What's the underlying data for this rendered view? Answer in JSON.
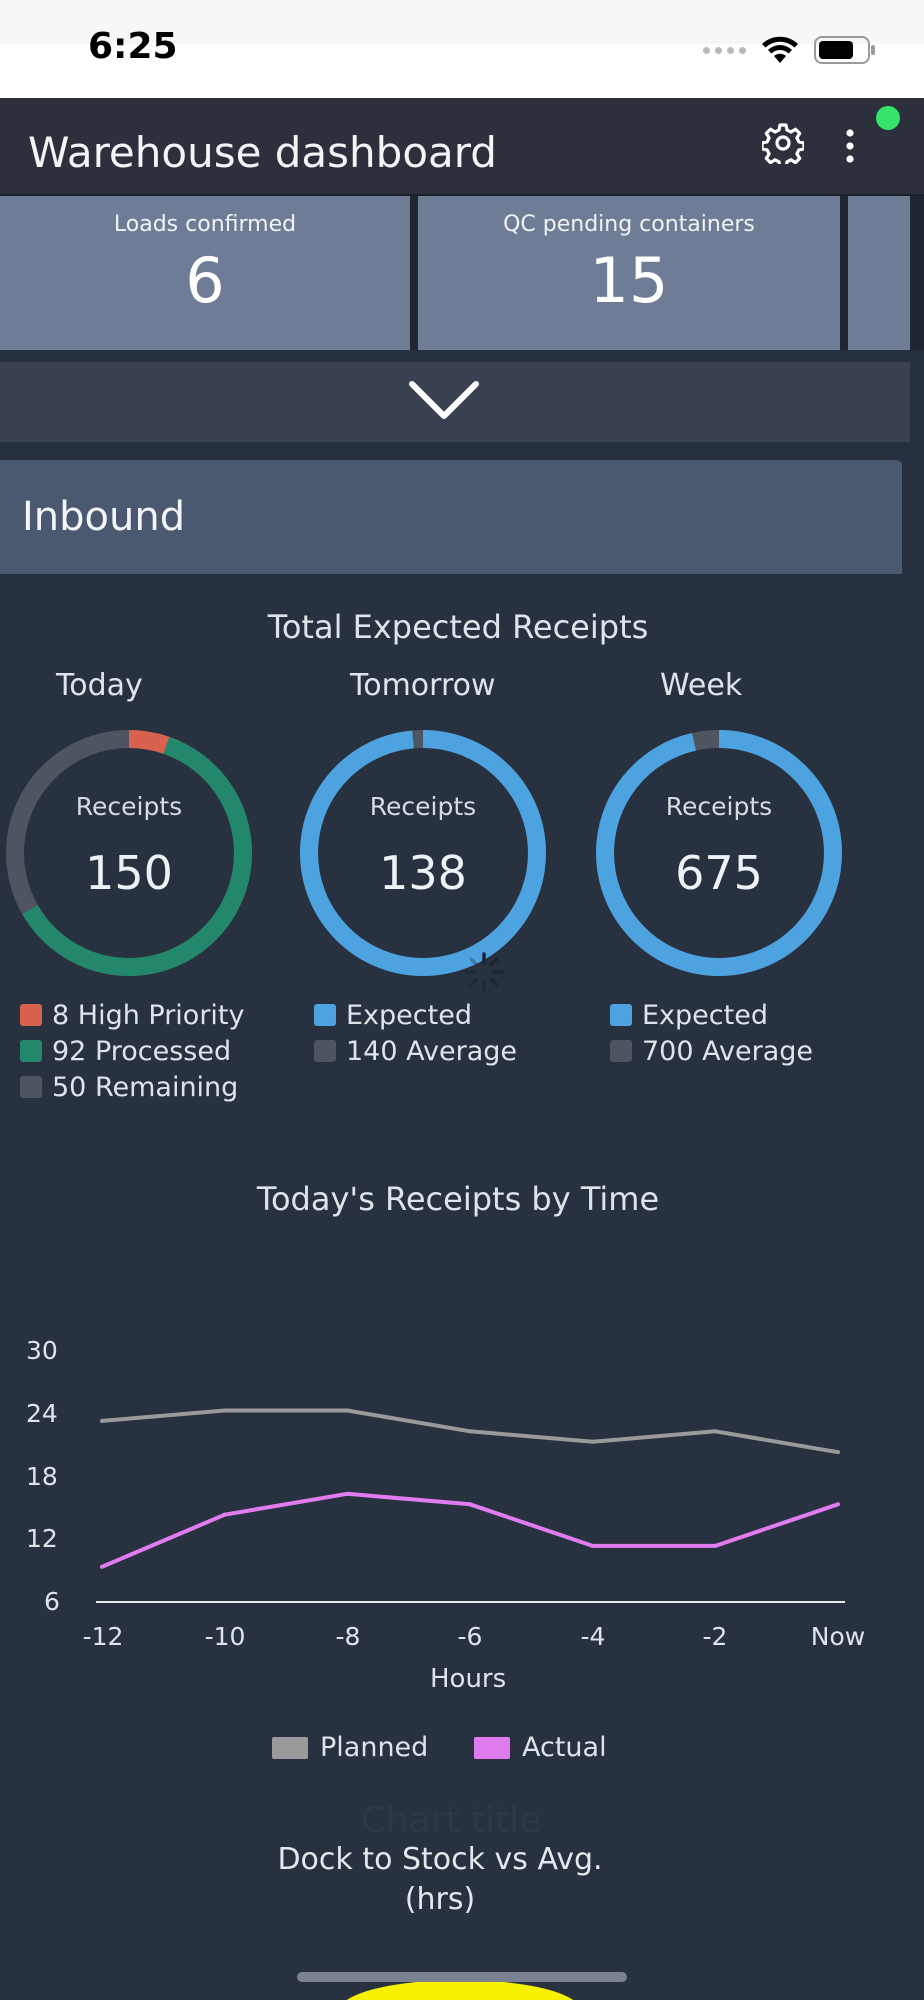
{
  "status_bar": {
    "time": "6:25"
  },
  "header": {
    "title": "Warehouse dashboard"
  },
  "stats": [
    {
      "label": "Loads confirmed",
      "value": "6"
    },
    {
      "label": "QC pending containers",
      "value": "15"
    }
  ],
  "inbound": {
    "title": "Inbound",
    "receipts_title": "Total Expected Receipts",
    "donuts": [
      {
        "label": "Today",
        "caption": "Receipts",
        "value": "150",
        "legend": [
          {
            "text": "8 High Priority",
            "color": "#d9624f"
          },
          {
            "text": "92 Processed",
            "color": "#22876b"
          },
          {
            "text": "50 Remaining",
            "color": "#4e5560"
          }
        ]
      },
      {
        "label": "Tomorrow",
        "caption": "Receipts",
        "value": "138",
        "legend": [
          {
            "text": "Expected",
            "color": "#4da3e0"
          },
          {
            "text": "140 Average",
            "color": "#4e5560"
          }
        ]
      },
      {
        "label": "Week",
        "caption": "Receipts",
        "value": "675",
        "legend": [
          {
            "text": "Expected",
            "color": "#4da3e0"
          },
          {
            "text": "700 Average",
            "color": "#4e5560"
          }
        ]
      }
    ]
  },
  "chart_data": {
    "type": "line",
    "title": "Today's Receipts by Time",
    "xlabel": "Hours",
    "ylabel": "",
    "categories": [
      "-12",
      "-10",
      "-8",
      "-6",
      "-4",
      "-2",
      "Now"
    ],
    "y_ticks": [
      "30",
      "24",
      "18",
      "12",
      "6"
    ],
    "ylim": [
      6,
      30
    ],
    "grid": false,
    "legend": "bottom",
    "series": [
      {
        "name": "Planned",
        "color": "#9a9a9a",
        "values": [
          23,
          24,
          24,
          22,
          21,
          22,
          20
        ]
      },
      {
        "name": "Actual",
        "color": "#e17cf0",
        "values": [
          9,
          14,
          16,
          15,
          11,
          11,
          15
        ]
      }
    ]
  },
  "dock": {
    "ghost": "Chart title",
    "title_line1": "Dock to Stock vs Avg.",
    "title_line2": "(hrs)"
  }
}
